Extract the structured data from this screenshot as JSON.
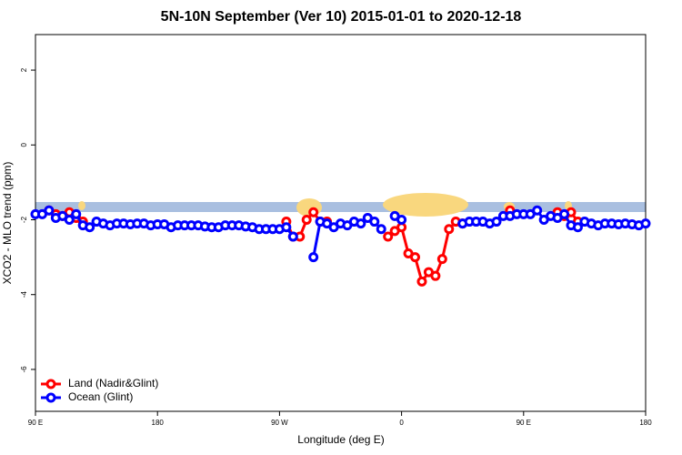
{
  "chart_data": {
    "type": "line",
    "title": "5N-10N September (Ver 10)   2015-01-01 to 2020-12-18",
    "xlabel": "Longitude (deg E)",
    "ylabel": "XCO2 - MLO trend (ppm)",
    "x": [
      90,
      95,
      100,
      105,
      110,
      115,
      120,
      125,
      130,
      135,
      140,
      145,
      150,
      155,
      160,
      165,
      170,
      175,
      180,
      185,
      190,
      195,
      200,
      205,
      210,
      215,
      220,
      225,
      230,
      235,
      240,
      245,
      250,
      255,
      260,
      265,
      270,
      275,
      280,
      285,
      290,
      295,
      300,
      305,
      310,
      315,
      320,
      325,
      330,
      335,
      340,
      345,
      350,
      355,
      360,
      365,
      370,
      375,
      380,
      385,
      390,
      395,
      400,
      405,
      410,
      415,
      420,
      425,
      430,
      435,
      440,
      445,
      450,
      455,
      460,
      465,
      470,
      475,
      480,
      485,
      490,
      495,
      500,
      505,
      510,
      515,
      520,
      525,
      530,
      535,
      540
    ],
    "series": [
      {
        "name": "Land (Nadir&Glint)",
        "color": "#ff0000",
        "values": [
          null,
          null,
          -1.75,
          -1.85,
          -1.9,
          -1.8,
          -1.95,
          -2.05,
          null,
          null,
          null,
          null,
          null,
          null,
          null,
          null,
          null,
          null,
          null,
          null,
          null,
          null,
          null,
          null,
          null,
          null,
          null,
          null,
          null,
          null,
          null,
          null,
          null,
          null,
          null,
          null,
          null,
          -2.05,
          -2.45,
          -2.45,
          -2.0,
          -1.8,
          -2.05,
          -2.05,
          null,
          null,
          null,
          null,
          null,
          null,
          null,
          null,
          -2.45,
          -2.3,
          -2.2,
          -2.9,
          -3.0,
          -3.65,
          -3.4,
          -3.5,
          -3.05,
          -2.25,
          -2.05,
          -2.1,
          null,
          null,
          null,
          null,
          null,
          null,
          -1.75,
          null,
          null,
          null,
          null,
          null,
          null,
          -1.8,
          -1.9,
          -1.8,
          -2.05,
          null,
          null,
          null,
          null,
          null,
          null,
          null,
          null,
          null,
          null
        ]
      },
      {
        "name": "Ocean (Glint)",
        "color": "#0000ff",
        "values": [
          -1.85,
          -1.85,
          -1.75,
          -1.95,
          -1.9,
          -2.0,
          -1.85,
          -2.15,
          -2.2,
          -2.05,
          -2.1,
          -2.15,
          -2.1,
          -2.1,
          -2.12,
          -2.1,
          -2.1,
          -2.15,
          -2.12,
          -2.12,
          -2.2,
          -2.15,
          -2.15,
          -2.15,
          -2.15,
          -2.18,
          -2.2,
          -2.2,
          -2.15,
          -2.15,
          -2.15,
          -2.18,
          -2.2,
          -2.25,
          -2.25,
          -2.25,
          -2.25,
          -2.2,
          -2.45,
          null,
          null,
          -3.0,
          -2.05,
          -2.1,
          -2.2,
          -2.1,
          -2.15,
          -2.05,
          -2.1,
          -1.95,
          -2.05,
          -2.25,
          null,
          -1.9,
          -2.0,
          null,
          null,
          null,
          null,
          null,
          null,
          null,
          null,
          -2.1,
          -2.05,
          -2.05,
          -2.05,
          -2.1,
          -2.05,
          -1.9,
          -1.9,
          -1.85,
          -1.85,
          -1.85,
          -1.75,
          -2.0,
          -1.9,
          -1.95,
          -1.85,
          -2.15,
          -2.2,
          -2.05,
          -2.1,
          -2.15,
          -2.1,
          -2.1,
          -2.12,
          -2.1,
          -2.12,
          -2.15,
          -2.1
        ]
      }
    ],
    "xlim": [
      90,
      540
    ],
    "xticks": [
      {
        "value": 90,
        "label": "90 E"
      },
      180,
      {
        "value": 270,
        "label": "90 W"
      },
      {
        "value": 360,
        "label": "0"
      },
      {
        "value": 450,
        "label": "90 E"
      },
      {
        "value": 540,
        "label": "180"
      }
    ],
    "ylim": [
      -7.12,
      2.95
    ],
    "yticks": [
      2,
      0,
      -2,
      -4,
      -6
    ],
    "legend": "bottom-left"
  }
}
